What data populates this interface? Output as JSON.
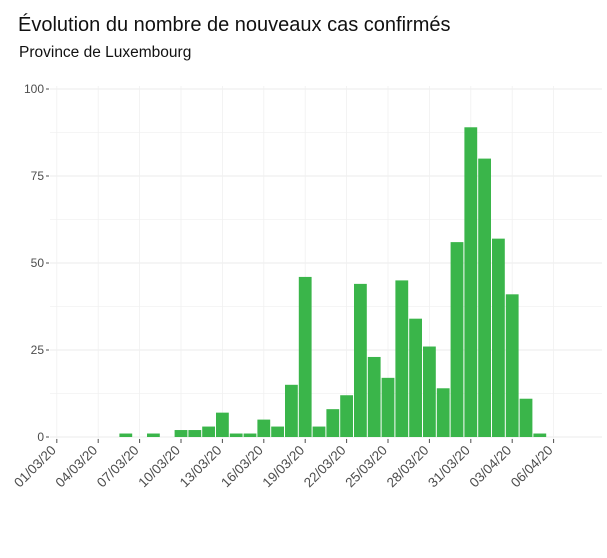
{
  "chart_data": {
    "type": "bar",
    "title": "Évolution du nombre de nouveaux cas confirmés",
    "subtitle": "Province de Luxembourg",
    "xlabel": "",
    "ylabel": "",
    "ylim": [
      0,
      100
    ],
    "yticks": [
      0,
      25,
      50,
      75,
      100
    ],
    "xlim": [
      "29/02/20",
      "06/04/20"
    ],
    "xticks": [
      "01/03/20",
      "04/03/20",
      "07/03/20",
      "10/03/20",
      "13/03/20",
      "16/03/20",
      "19/03/20",
      "22/03/20",
      "25/03/20",
      "28/03/20",
      "31/03/20",
      "03/04/20",
      "06/04/20"
    ],
    "categories": [
      "06/03/20",
      "07/03/20",
      "08/03/20",
      "09/03/20",
      "10/03/20",
      "11/03/20",
      "12/03/20",
      "13/03/20",
      "14/03/20",
      "15/03/20",
      "16/03/20",
      "17/03/20",
      "18/03/20",
      "19/03/20",
      "20/03/20",
      "21/03/20",
      "22/03/20",
      "23/03/20",
      "24/03/20",
      "25/03/20",
      "26/03/20",
      "27/03/20",
      "28/03/20",
      "29/03/20",
      "30/03/20",
      "31/03/20",
      "01/04/20",
      "02/04/20",
      "03/04/20",
      "04/04/20",
      "05/04/20"
    ],
    "values": [
      1,
      0,
      1,
      0,
      2,
      2,
      3,
      7,
      1,
      1,
      5,
      3,
      15,
      46,
      3,
      8,
      12,
      44,
      23,
      17,
      45,
      34,
      26,
      14,
      56,
      89,
      80,
      57,
      41,
      11,
      1
    ],
    "bar_color": "#3ab54a",
    "grid": true,
    "legend": "none"
  }
}
